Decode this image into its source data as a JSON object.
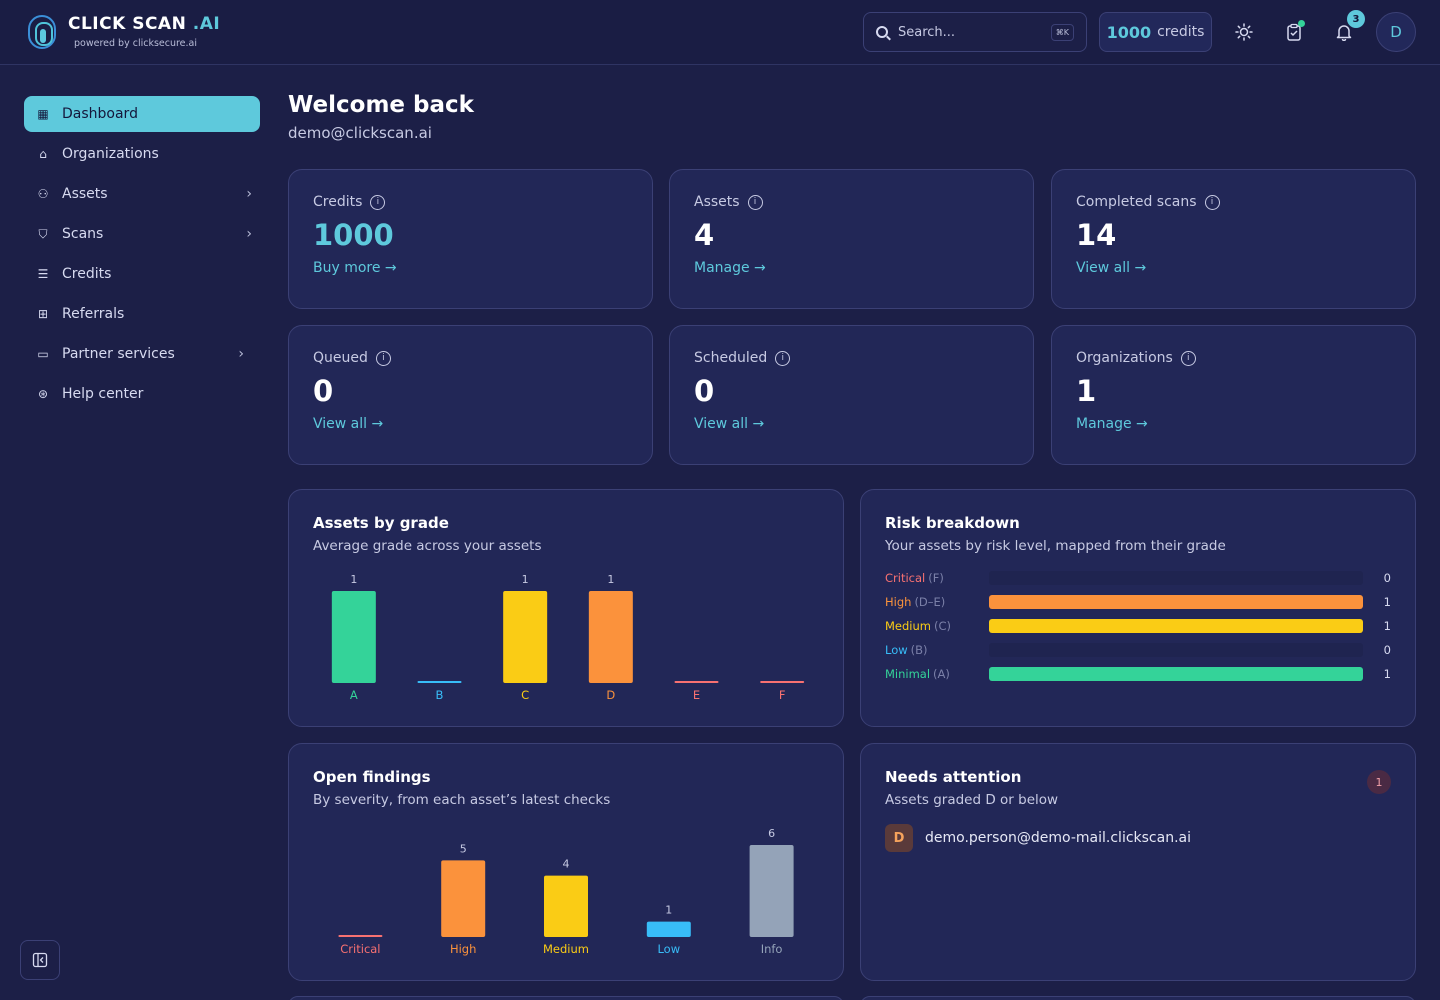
{
  "brand": {
    "name": "CLICK SCAN",
    "suffix": ".AI",
    "tagline": "powered by clicksecure.ai"
  },
  "header": {
    "search_placeholder": "Search...",
    "search_shortcut": "⌘K",
    "credits_value": "1000",
    "credits_word": "credits",
    "notification_count": "3",
    "avatar_initial": "D"
  },
  "sidebar": {
    "items": [
      {
        "label": "Dashboard",
        "icon": "grid-icon",
        "active": true
      },
      {
        "label": "Organizations",
        "icon": "building-icon"
      },
      {
        "label": "Assets",
        "icon": "sitemap-icon",
        "chevron": true
      },
      {
        "label": "Scans",
        "icon": "shield-icon",
        "chevron": true
      },
      {
        "label": "Credits",
        "icon": "database-icon"
      },
      {
        "label": "Referrals",
        "icon": "gift-icon"
      },
      {
        "label": "Partner services",
        "icon": "briefcase-icon",
        "chevron": true
      },
      {
        "label": "Help center",
        "icon": "lifebuoy-icon"
      }
    ]
  },
  "welcome": {
    "title": "Welcome back",
    "email": "demo@clickscan.ai"
  },
  "stats": [
    {
      "label": "Credits",
      "value": "1000",
      "link": "Buy more →"
    },
    {
      "label": "Assets",
      "value": "4",
      "link": "Manage →"
    },
    {
      "label": "Completed scans",
      "value": "14",
      "link": "View all →"
    },
    {
      "label": "Queued",
      "value": "0",
      "link": "View all →"
    },
    {
      "label": "Scheduled",
      "value": "0",
      "link": "View all →"
    },
    {
      "label": "Organizations",
      "value": "1",
      "link": "Manage →"
    }
  ],
  "panels": {
    "grades": {
      "title": "Assets by grade",
      "subtitle": "Average grade across your assets"
    },
    "risk": {
      "title": "Risk breakdown",
      "subtitle": "Your assets by risk level, mapped from their grade"
    },
    "findings": {
      "title": "Open findings",
      "subtitle": "By severity, from each asset’s latest checks"
    },
    "attention": {
      "title": "Needs attention",
      "subtitle": "Assets graded D or below",
      "count": "1",
      "items": [
        {
          "grade": "D",
          "email": "demo.person@demo-mail.clickscan.ai"
        }
      ]
    }
  },
  "chart_data": [
    {
      "type": "bar",
      "categories": [
        "A",
        "B",
        "C",
        "D",
        "E",
        "F"
      ],
      "values": [
        1,
        0,
        1,
        1,
        0,
        0
      ],
      "colors": [
        "#34d399",
        "#38bdf8",
        "#facc15",
        "#fb923c",
        "#f87171",
        "#f87171"
      ],
      "data_labels": [
        "1",
        "",
        "1",
        "1",
        "",
        ""
      ]
    },
    {
      "type": "bar",
      "orientation": "horizontal",
      "categories": [
        "Critical",
        "High",
        "Medium",
        "Low",
        "Minimal"
      ],
      "grades": [
        "(F)",
        "(D–E)",
        "(C)",
        "(B)",
        "(A)"
      ],
      "values": [
        0,
        1,
        1,
        0,
        1
      ],
      "max": 1,
      "colors": [
        "#f87171",
        "#fb923c",
        "#facc15",
        "#38bdf8",
        "#34d399"
      ]
    },
    {
      "type": "bar",
      "categories": [
        "Critical",
        "High",
        "Medium",
        "Low",
        "Info"
      ],
      "values": [
        0,
        5,
        4,
        1,
        6
      ],
      "colors": [
        "#f87171",
        "#fb923c",
        "#facc15",
        "#38bdf8",
        "#94a3b8"
      ],
      "data_labels": [
        "",
        "5",
        "4",
        "1",
        "6"
      ]
    }
  ]
}
